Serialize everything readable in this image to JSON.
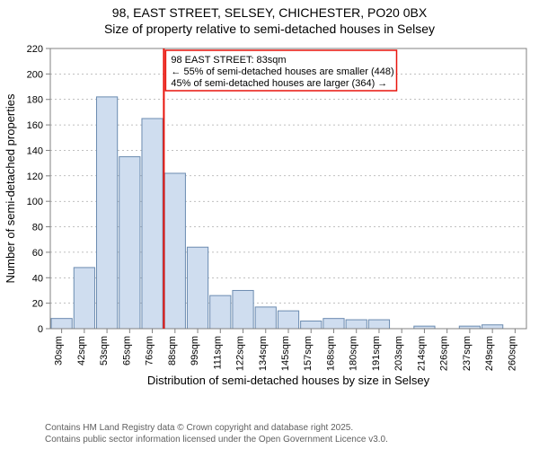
{
  "title": {
    "line1": "98, EAST STREET, SELSEY, CHICHESTER, PO20 0BX",
    "line2": "Size of property relative to semi-detached houses in Selsey"
  },
  "chart": {
    "type": "histogram",
    "background_color": "#ffffff",
    "plot_border_color": "#808080",
    "grid_color": "#808080",
    "grid_dash": "2 3",
    "bar_fill": "#cfddef",
    "bar_stroke": "#6b8bb0",
    "y": {
      "label": "Number of semi-detached properties",
      "min": 0,
      "max": 220,
      "tick_step": 20,
      "ticks": [
        0,
        20,
        40,
        60,
        80,
        100,
        120,
        140,
        160,
        180,
        200,
        220
      ],
      "label_fontsize": 13,
      "tick_fontsize": 11
    },
    "x": {
      "label": "Distribution of semi-detached houses by size in Selsey",
      "tick_labels": [
        "30sqm",
        "42sqm",
        "53sqm",
        "65sqm",
        "76sqm",
        "88sqm",
        "99sqm",
        "111sqm",
        "122sqm",
        "134sqm",
        "145sqm",
        "157sqm",
        "168sqm",
        "180sqm",
        "191sqm",
        "203sqm",
        "214sqm",
        "226sqm",
        "237sqm",
        "249sqm",
        "260sqm"
      ],
      "label_fontsize": 13,
      "tick_fontsize": 11
    },
    "bins": [
      {
        "label": "30sqm",
        "value": 8
      },
      {
        "label": "42sqm",
        "value": 48
      },
      {
        "label": "53sqm",
        "value": 182
      },
      {
        "label": "65sqm",
        "value": 135
      },
      {
        "label": "76sqm",
        "value": 165
      },
      {
        "label": "88sqm",
        "value": 122
      },
      {
        "label": "99sqm",
        "value": 64
      },
      {
        "label": "111sqm",
        "value": 26
      },
      {
        "label": "122sqm",
        "value": 30
      },
      {
        "label": "134sqm",
        "value": 17
      },
      {
        "label": "145sqm",
        "value": 14
      },
      {
        "label": "157sqm",
        "value": 6
      },
      {
        "label": "168sqm",
        "value": 8
      },
      {
        "label": "180sqm",
        "value": 7
      },
      {
        "label": "191sqm",
        "value": 7
      },
      {
        "label": "203sqm",
        "value": 0
      },
      {
        "label": "214sqm",
        "value": 2
      },
      {
        "label": "226sqm",
        "value": 0
      },
      {
        "label": "237sqm",
        "value": 2
      },
      {
        "label": "249sqm",
        "value": 3
      },
      {
        "label": "260sqm",
        "value": 0
      }
    ],
    "marker": {
      "bin_index_after": 4,
      "fraction_within_gap": 0.6,
      "color": "#e8140c",
      "annotation_lines": [
        "98 EAST STREET: 83sqm",
        "← 55% of semi-detached houses are smaller (448)",
        "45% of semi-detached houses are larger (364) →"
      ],
      "box_border": "#e8140c",
      "box_fill": "#ffffff"
    }
  },
  "footer": {
    "line1": "Contains HM Land Registry data © Crown copyright and database right 2025.",
    "line2": "Contains public sector information licensed under the Open Government Licence v3.0."
  }
}
